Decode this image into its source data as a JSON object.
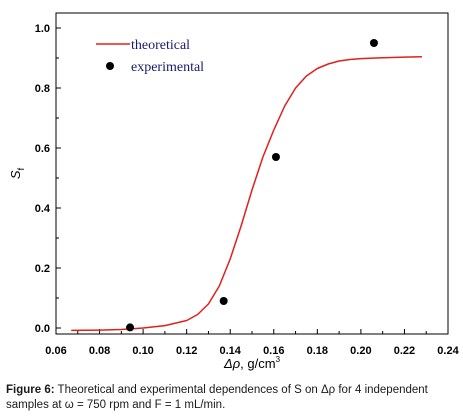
{
  "chart_data": {
    "type": "line",
    "xlabel_symbol": "Δρ",
    "xlabel_unit": ", g/cm",
    "xlabel_sup": "3",
    "ylabel_main": "S",
    "ylabel_sub": "f",
    "xlim": [
      0.06,
      0.24
    ],
    "ylim": [
      -0.02,
      1.05
    ],
    "xticks": [
      0.06,
      0.08,
      0.1,
      0.12,
      0.14,
      0.16,
      0.18,
      0.2,
      0.22,
      0.24
    ],
    "xtick_labels": [
      "0.06",
      "0.08",
      "0.10",
      "0.12",
      "0.14",
      "0.16",
      "0.18",
      "0.20",
      "0.22",
      "0.24"
    ],
    "yticks": [
      0.0,
      0.2,
      0.4,
      0.6,
      0.8,
      1.0
    ],
    "ytick_labels": [
      "0.0",
      "0.2",
      "0.4",
      "0.6",
      "0.8",
      "1.0"
    ],
    "legend_position": "top-left",
    "series": [
      {
        "name": "theoretical",
        "kind": "line",
        "color": "#e0201b",
        "x": [
          0.067,
          0.08,
          0.09,
          0.1,
          0.11,
          0.12,
          0.125,
          0.13,
          0.135,
          0.14,
          0.145,
          0.15,
          0.155,
          0.16,
          0.165,
          0.17,
          0.175,
          0.18,
          0.185,
          0.19,
          0.195,
          0.2,
          0.21,
          0.22,
          0.228
        ],
        "y": [
          -0.008,
          -0.007,
          -0.005,
          0.0,
          0.008,
          0.025,
          0.045,
          0.08,
          0.14,
          0.23,
          0.34,
          0.46,
          0.57,
          0.66,
          0.74,
          0.8,
          0.84,
          0.865,
          0.88,
          0.89,
          0.895,
          0.898,
          0.901,
          0.903,
          0.904
        ]
      },
      {
        "name": "experimental",
        "kind": "scatter",
        "color": "#000000",
        "x": [
          0.094,
          0.137,
          0.161,
          0.206
        ],
        "y": [
          0.002,
          0.09,
          0.57,
          0.95
        ]
      }
    ]
  },
  "caption": {
    "label": "Figure 6:",
    "text": " Theoretical and experimental dependences of S on Δρ for 4 independent samples at ω = 750 rpm and F = 1 mL/min."
  }
}
